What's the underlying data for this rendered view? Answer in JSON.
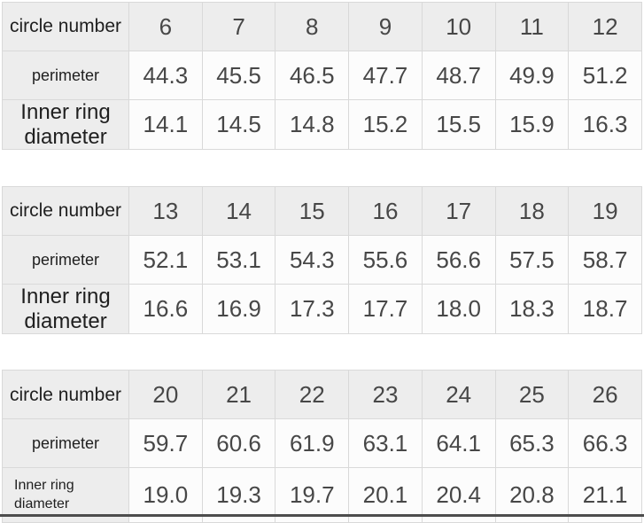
{
  "page": {
    "background_color": "#ffffff",
    "header_cell_color": "#ededed",
    "data_cell_color": "#fcfcfc",
    "border_color": "#d9d9d9",
    "label_text_color": "#1f1f1f",
    "value_text_color": "#474747",
    "bottom_edge_color": "#4d4d4d"
  },
  "tables": [
    {
      "header_label": "circle number",
      "columns": [
        "6",
        "7",
        "8",
        "9",
        "10",
        "11",
        "12"
      ],
      "rows": [
        {
          "label": "perimeter",
          "values": [
            "44.3",
            "45.5",
            "46.5",
            "47.7",
            "48.7",
            "49.9",
            "51.2"
          ]
        },
        {
          "label": "Inner ring diameter",
          "values": [
            "14.1",
            "14.5",
            "14.8",
            "15.2",
            "15.5",
            "15.9",
            "16.3"
          ]
        }
      ]
    },
    {
      "header_label": "circle number",
      "columns": [
        "13",
        "14",
        "15",
        "16",
        "17",
        "18",
        "19"
      ],
      "rows": [
        {
          "label": "perimeter",
          "values": [
            "52.1",
            "53.1",
            "54.3",
            "55.6",
            "56.6",
            "57.5",
            "58.7"
          ]
        },
        {
          "label": "Inner ring diameter",
          "values": [
            "16.6",
            "16.9",
            "17.3",
            "17.7",
            "18.0",
            "18.3",
            "18.7"
          ]
        }
      ]
    },
    {
      "header_label": "circle number",
      "columns": [
        "20",
        "21",
        "22",
        "23",
        "24",
        "25",
        "26"
      ],
      "rows": [
        {
          "label": "perimeter",
          "values": [
            "59.7",
            "60.6",
            "61.9",
            "63.1",
            "64.1",
            "65.3",
            "66.3"
          ]
        },
        {
          "label": "Inner ring diameter",
          "values": [
            "19.0",
            "19.3",
            "19.7",
            "20.1",
            "20.4",
            "20.8",
            "21.1"
          ]
        }
      ]
    }
  ]
}
